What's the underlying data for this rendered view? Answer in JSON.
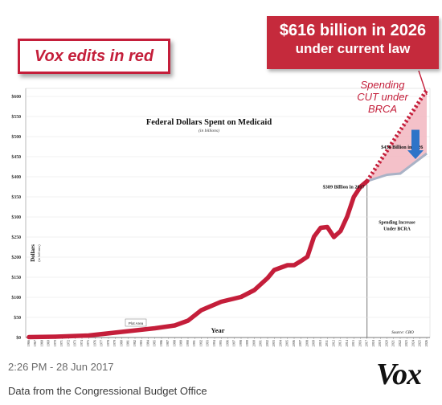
{
  "chart_data": {
    "type": "line",
    "title": "Federal Dollars Spent on Medicaid",
    "subtitle": "(in billions)",
    "ylabel": "Dollars",
    "ylabel_sub": "(in billions)",
    "xlabel": "Year",
    "ylim": [
      0,
      600
    ],
    "y_ticks": [
      "$0",
      "$50",
      "$100",
      "$150",
      "$200",
      "$250",
      "$300",
      "$350",
      "$400",
      "$450",
      "$500",
      "$550",
      "$600"
    ],
    "x_years": [
      1966,
      1967,
      1968,
      1969,
      1970,
      1971,
      1972,
      1973,
      1974,
      1975,
      1976,
      1977,
      1978,
      1979,
      1980,
      1981,
      1982,
      1983,
      1984,
      1985,
      1986,
      1987,
      1988,
      1989,
      1990,
      1991,
      1992,
      1993,
      1994,
      1995,
      1996,
      1997,
      1998,
      1999,
      2000,
      2001,
      2002,
      2003,
      2004,
      2005,
      2006,
      2007,
      2008,
      2009,
      2010,
      2011,
      2012,
      2013,
      2014,
      2015,
      2016,
      2017,
      2018,
      2019,
      2020,
      2021,
      2022,
      2023,
      2024,
      2025,
      2026
    ],
    "series": [
      {
        "color": "#c41e3a",
        "style": "solid",
        "points": [
          [
            1966,
            1
          ],
          [
            1970,
            2
          ],
          [
            1975,
            5
          ],
          [
            1980,
            14
          ],
          [
            1985,
            23
          ],
          [
            1988,
            30
          ],
          [
            1990,
            42
          ],
          [
            1992,
            68
          ],
          [
            1995,
            89
          ],
          [
            1998,
            101
          ],
          [
            2000,
            118
          ],
          [
            2002,
            148
          ],
          [
            2003,
            168
          ],
          [
            2005,
            180
          ],
          [
            2006,
            180
          ],
          [
            2007,
            190
          ],
          [
            2008,
            201
          ],
          [
            2009,
            251
          ],
          [
            2010,
            273
          ],
          [
            2011,
            275
          ],
          [
            2012,
            250
          ],
          [
            2013,
            265
          ],
          [
            2014,
            301
          ],
          [
            2015,
            350
          ],
          [
            2016,
            375
          ],
          [
            2017,
            389
          ]
        ]
      },
      {
        "color": "#c41e3a",
        "style": "dotted",
        "points": [
          [
            2017,
            389
          ],
          [
            2026,
            616
          ]
        ]
      },
      {
        "color": "#a9b2c6",
        "style": "solid",
        "points": [
          [
            2017,
            389
          ],
          [
            2020,
            405
          ],
          [
            2022,
            408
          ],
          [
            2026,
            458
          ]
        ]
      }
    ],
    "annotations": {
      "plot_area": "Plot Area",
      "label_2017": "$389 Billion in 2017",
      "label_2026": "$458 Billion in 2026",
      "spending_increase": [
        "Spending Increase",
        "Under BCRA"
      ],
      "source": "Source: CBO",
      "spending_cut": [
        "Spending",
        "CUT under",
        "BRCA"
      ]
    }
  },
  "overlay": {
    "vox_edits": "Vox edits in red",
    "callout_line1": "$616 billion in 2026",
    "callout_line2": "under current law"
  },
  "footer": {
    "timestamp": "2:26 PM - 28 Jun 2017",
    "source": "Data from the Congressional Budget Office",
    "logo": "Vox"
  }
}
